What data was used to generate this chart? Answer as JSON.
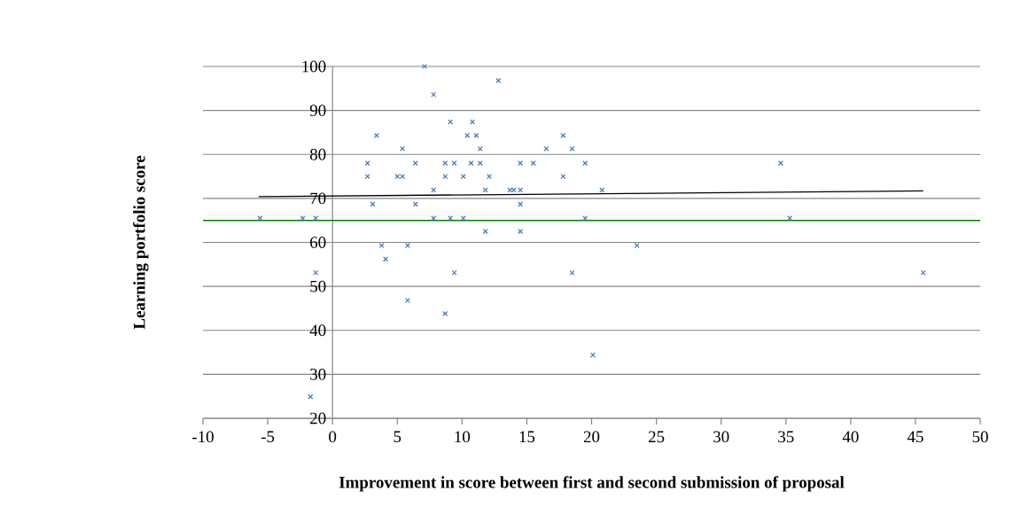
{
  "chart_data": {
    "type": "scatter",
    "xlabel": "Improvement in score between first and second submission of proposal",
    "ylabel": "Learning portfolio score",
    "series": [
      {
        "color": "#4a7ebb",
        "marker": "cross",
        "x": [
          -5.6,
          -2.3,
          -1.3,
          -1.3,
          -1.7,
          2.7,
          2.7,
          3.1,
          3.4,
          3.8,
          4.1,
          5.0,
          5.4,
          5.4,
          5.8,
          5.8,
          6.4,
          6.4,
          7.1,
          7.8,
          7.8,
          7.8,
          8.7,
          8.7,
          8.7,
          9.1,
          9.1,
          9.4,
          9.4,
          10.1,
          10.1,
          10.4,
          10.8,
          10.7,
          11.1,
          11.4,
          11.4,
          11.8,
          11.8,
          12.1,
          12.8,
          13.7,
          14.0,
          14.5,
          14.5,
          14.5,
          14.5,
          15.5,
          16.5,
          17.8,
          17.8,
          18.5,
          18.5,
          19.5,
          19.5,
          20.1,
          20.8,
          23.5,
          34.6,
          35.3,
          45.6
        ],
        "values": [
          65.5,
          65.5,
          65.5,
          53.1,
          24.9,
          78.0,
          75.0,
          68.7,
          84.3,
          59.3,
          56.2,
          75.0,
          75.0,
          81.3,
          59.3,
          46.8,
          78.0,
          68.7,
          100,
          93.6,
          71.9,
          65.5,
          75.0,
          78.0,
          43.8,
          87.4,
          65.5,
          78.0,
          53.1,
          75.0,
          65.5,
          84.3,
          87.4,
          78.0,
          84.3,
          81.3,
          78.0,
          71.9,
          62.5,
          75.0,
          96.8,
          71.9,
          71.9,
          71.9,
          78.0,
          68.7,
          62.5,
          78.0,
          81.3,
          84.3,
          75.0,
          81.3,
          53.1,
          78.0,
          65.5,
          34.4,
          71.9,
          59.3,
          78.0,
          65.5,
          53.1
        ]
      },
      {
        "type": "line",
        "color": "#000000",
        "x": [
          -5.7,
          45.6
        ],
        "values": [
          70.4,
          71.7
        ]
      }
    ],
    "xlim": [
      -10,
      50
    ],
    "xticks": [
      -10,
      -5,
      0,
      5,
      10,
      15,
      20,
      25,
      30,
      35,
      40,
      45,
      50
    ],
    "ylim": [
      20,
      100
    ],
    "yticks": [
      20,
      30,
      40,
      50,
      60,
      70,
      80,
      90,
      100
    ],
    "grid": "y",
    "ref_lines": [
      {
        "axis": "y",
        "value": 65,
        "color": "#008000"
      }
    ]
  }
}
